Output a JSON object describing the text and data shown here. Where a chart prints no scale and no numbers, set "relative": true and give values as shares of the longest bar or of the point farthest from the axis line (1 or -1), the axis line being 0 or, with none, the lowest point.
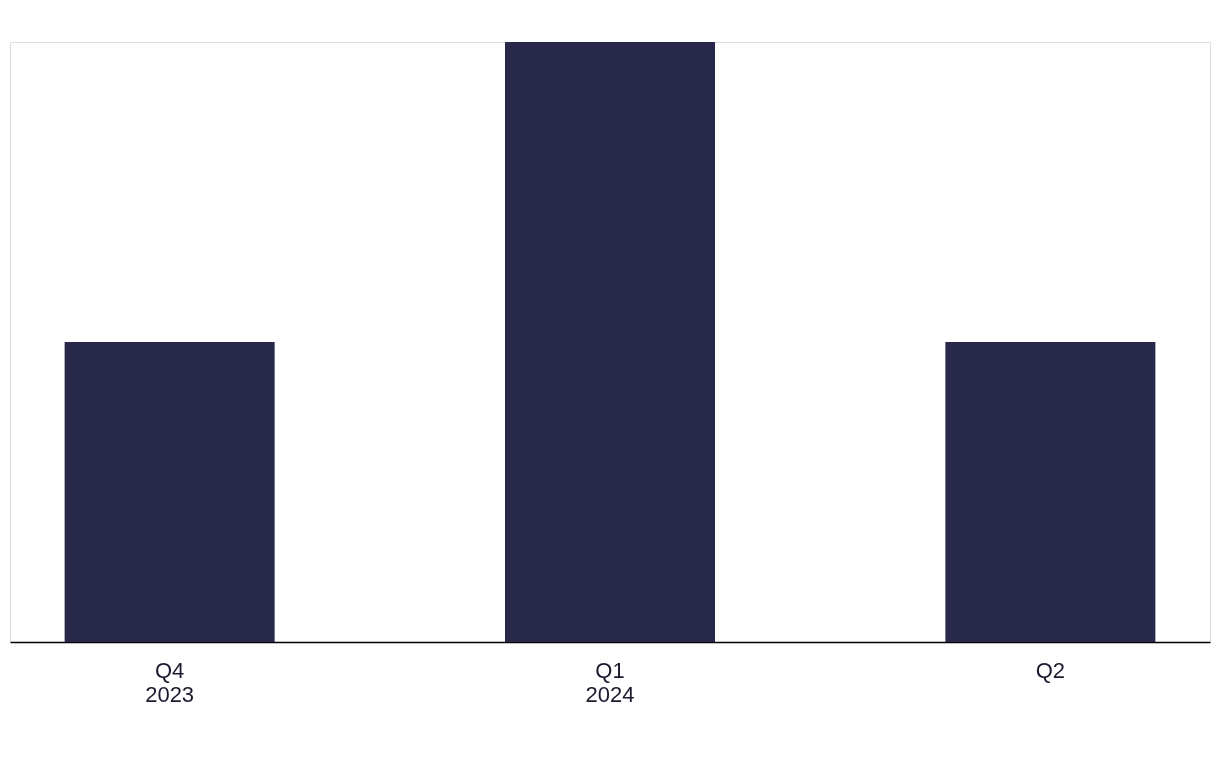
{
  "chart_data": {
    "type": "bar",
    "relative": true,
    "categories": [
      "Q4\n2023",
      "Q1\n2024",
      "Q2"
    ],
    "values": [
      0.5,
      1,
      0.5
    ],
    "color": "#28284a"
  }
}
